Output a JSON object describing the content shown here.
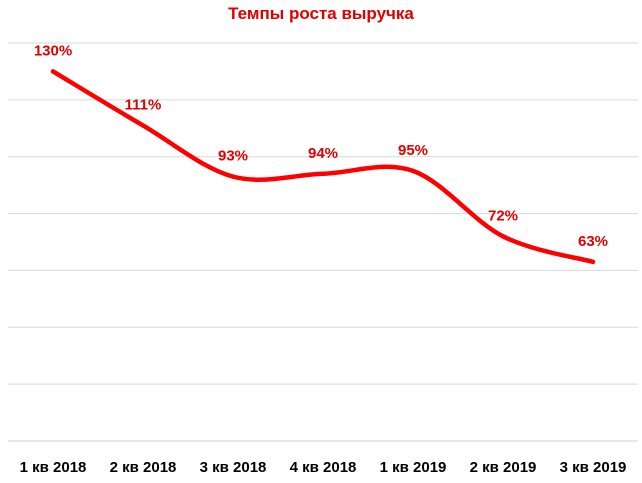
{
  "chart_data": {
    "type": "line",
    "title": "Темпы роста выручка",
    "xlabel": "",
    "ylabel": "",
    "categories": [
      "1 кв 2018",
      "2 кв 2018",
      "3 кв 2018",
      "4 кв 2018",
      "1 кв 2019",
      "2 кв 2019",
      "3 кв 2019"
    ],
    "series": [
      {
        "values": [
          130,
          111,
          93,
          94,
          95,
          72,
          63
        ],
        "labels": [
          "130%",
          "111%",
          "93%",
          "94%",
          "95%",
          "72%",
          "63%"
        ]
      }
    ],
    "ylim": [
      0,
      140
    ],
    "grid": true,
    "smooth": true,
    "legend": "none",
    "colors": {
      "line": "#ff0000",
      "label": "#e00000",
      "title": "#e00000",
      "grid": "#d9d9d9",
      "axis": "#d9d9d9"
    }
  }
}
